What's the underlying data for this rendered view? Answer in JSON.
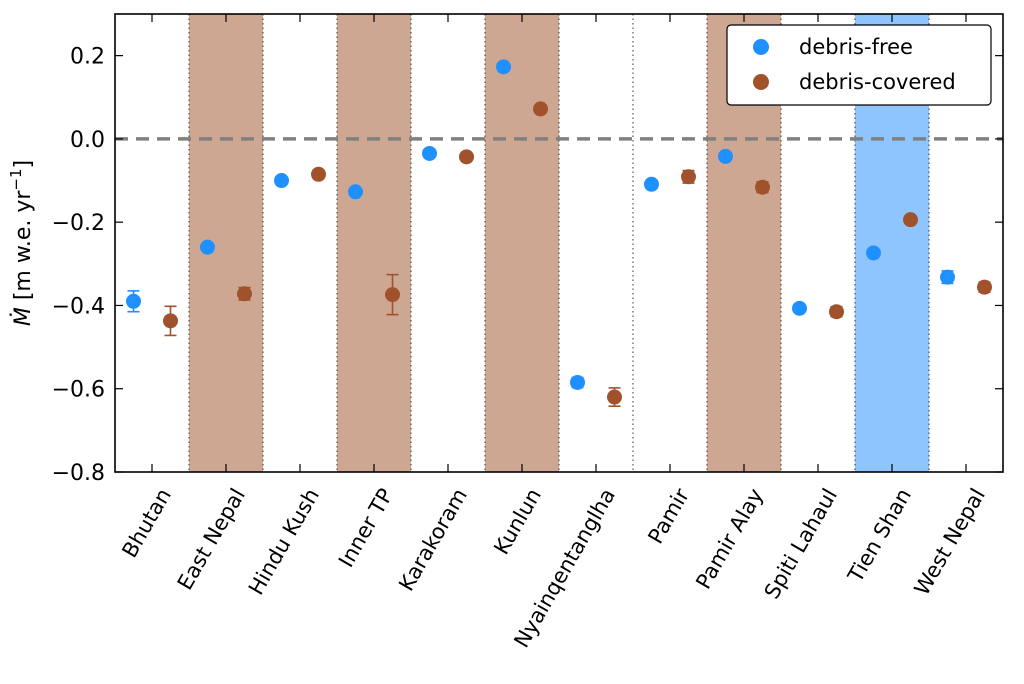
{
  "chart_data": {
    "type": "scatter",
    "categories": [
      "Bhutan",
      "East Nepal",
      "Hindu Kush",
      "Inner TP",
      "Karakoram",
      "Kunlun",
      "Nyainqentanglha",
      "Pamir",
      "Pamir Alay",
      "Spiti Lahaul",
      "Tien Shan",
      "West Nepal"
    ],
    "series": [
      {
        "name": "debris-free",
        "color": "#1e90ff",
        "values": [
          -0.39,
          -0.26,
          -0.1,
          -0.127,
          -0.035,
          0.173,
          -0.585,
          -0.109,
          -0.042,
          -0.407,
          -0.274,
          -0.332
        ],
        "errors": [
          0.025,
          0.007,
          0.006,
          0.008,
          0.005,
          0.006,
          0.012,
          0.006,
          0.006,
          0.007,
          0.006,
          0.015
        ]
      },
      {
        "name": "debris-covered",
        "color": "#a0522d",
        "values": [
          -0.437,
          -0.372,
          -0.085,
          -0.374,
          -0.043,
          0.072,
          -0.62,
          -0.091,
          -0.116,
          -0.415,
          -0.194,
          -0.356
        ],
        "errors": [
          0.035,
          0.015,
          0.01,
          0.048,
          0.005,
          0.006,
          0.022,
          0.015,
          0.013,
          0.012,
          0.007,
          0.012
        ]
      }
    ],
    "shaded_bands": [
      {
        "category": "East Nepal",
        "color": "#cda792"
      },
      {
        "category": "Inner TP",
        "color": "#cda792"
      },
      {
        "category": "Kunlun",
        "color": "#cda792"
      },
      {
        "category": "Pamir Alay",
        "color": "#cda792"
      },
      {
        "category": "Tien Shan",
        "color": "#8ec5ff"
      }
    ],
    "reference_line": {
      "y": 0.0,
      "style": "dashed",
      "color": "#808080"
    },
    "ylim": [
      -0.8,
      0.3
    ],
    "yticks": [
      0.2,
      0.0,
      -0.2,
      -0.4,
      -0.6,
      -0.8
    ],
    "ytick_labels": [
      "0.2",
      "0.0",
      "−0.2",
      "−0.4",
      "−0.6",
      "−0.8"
    ],
    "ylabel": {
      "symbol": "M",
      "units": " [m w.e. yr",
      "superscript": "−1",
      "close": "]"
    },
    "xlabel": "",
    "title": "",
    "legend": {
      "position": "top-right",
      "entries": [
        "debris-free",
        "debris-covered"
      ]
    },
    "grid": false
  }
}
